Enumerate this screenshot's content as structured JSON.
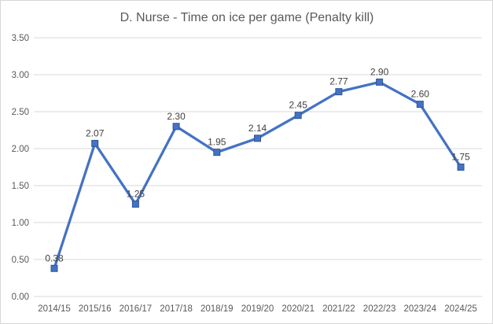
{
  "chart_data": {
    "type": "line",
    "title": "D. Nurse - Time on ice per game (Penalty kill)",
    "categories": [
      "2014/15",
      "2015/16",
      "2016/17",
      "2017/18",
      "2018/19",
      "2019/20",
      "2020/21",
      "2021/22",
      "2022/23",
      "2023/24",
      "2024/25"
    ],
    "values": [
      0.38,
      2.07,
      1.25,
      2.3,
      1.95,
      2.14,
      2.45,
      2.77,
      2.9,
      2.6,
      1.75
    ],
    "value_labels": [
      "0.38",
      "2.07",
      "1.25",
      "2.30",
      "1.95",
      "2.14",
      "2.45",
      "2.77",
      "2.90",
      "2.60",
      "1.75"
    ],
    "y_tick_labels": [
      "3.50",
      "3.00",
      "2.50",
      "2.00",
      "1.50",
      "1.00",
      "0.50",
      "0.00"
    ],
    "ylim": [
      0,
      3.5
    ],
    "y_step": 0.5,
    "xlabel": "",
    "ylabel": "",
    "grid": true,
    "legend_position": "none",
    "marker": "square",
    "colors": {
      "line": "#4472C4",
      "marker_fill": "#4472C4",
      "marker_edge": "#2F5597",
      "gridline": "#D9D9D9",
      "tick_label": "#595959",
      "data_label": "#404040",
      "title": "#595959",
      "chart_border": "#D7D7D7",
      "background": "#FFFFFF"
    }
  }
}
